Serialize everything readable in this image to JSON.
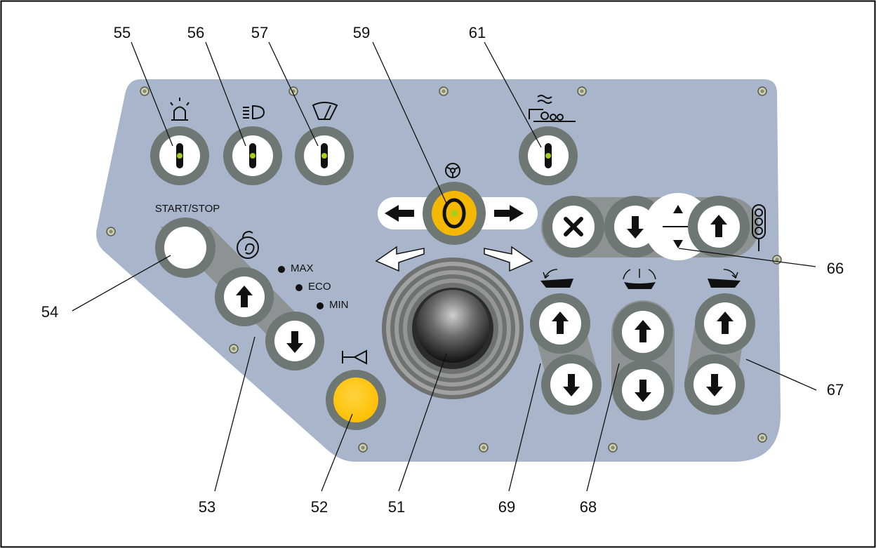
{
  "panel": {
    "start_stop_label": "START/STOP",
    "speed_modes": [
      "MAX",
      "ECO",
      "MIN"
    ]
  },
  "callouts": [
    "55",
    "56",
    "57",
    "59",
    "61",
    "54",
    "53",
    "52",
    "51",
    "69",
    "68",
    "67",
    "66"
  ],
  "colors": {
    "panel": "#a9b5cb",
    "ring": "#6e7774",
    "button_face": "#ffffff",
    "indicator_green": "#a6cf1c",
    "horn_yellow": "#ffc512",
    "steering_yellow": "#f5b800",
    "frame": "#000000"
  },
  "icons": [
    "beacon-icon",
    "headlight-icon",
    "wiper-icon",
    "steering-wheel-icon",
    "brush-icon",
    "engine-icon",
    "horn-icon",
    "traffic-light-icon"
  ]
}
